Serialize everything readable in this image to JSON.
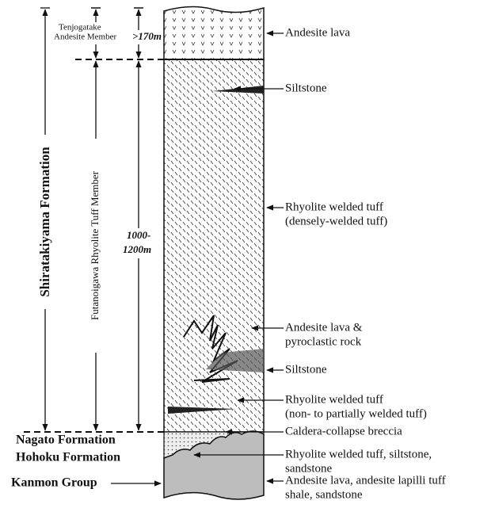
{
  "left_labels": {
    "tenjogatake": [
      "Tenjogatake",
      "Andesite Member"
    ],
    "thickness_upper": ">170m",
    "shiratakiyama": "Shiratakiyama Formation",
    "futanoigawa": "Futanoigawa Rhyolite Tuff Member",
    "thickness_lower": [
      "1000-",
      "1200m"
    ],
    "nagato": "Nagato Formation",
    "hohoku": "Hohoku Formation",
    "kanmon": "Kanmon Group"
  },
  "right_labels": [
    {
      "lines": [
        "Andesite lava"
      ]
    },
    {
      "lines": [
        "Siltstone"
      ]
    },
    {
      "lines": [
        "Rhyolite welded tuff",
        "(densely-welded tuff)"
      ]
    },
    {
      "lines": [
        "Andesite lava &",
        "pyroclastic rock"
      ]
    },
    {
      "lines": [
        "Siltstone"
      ]
    },
    {
      "lines": [
        "Rhyolite welded tuff",
        "(non- to partially welded tuff)"
      ]
    },
    {
      "lines": [
        "Caldera-collapse breccia"
      ]
    },
    {
      "lines": [
        "Rhyolite welded tuff, siltstone,",
        "sandstone"
      ]
    },
    {
      "lines": [
        "Andesite lava,  andesite lapilli tuff",
        "shale, sandstone"
      ]
    }
  ]
}
